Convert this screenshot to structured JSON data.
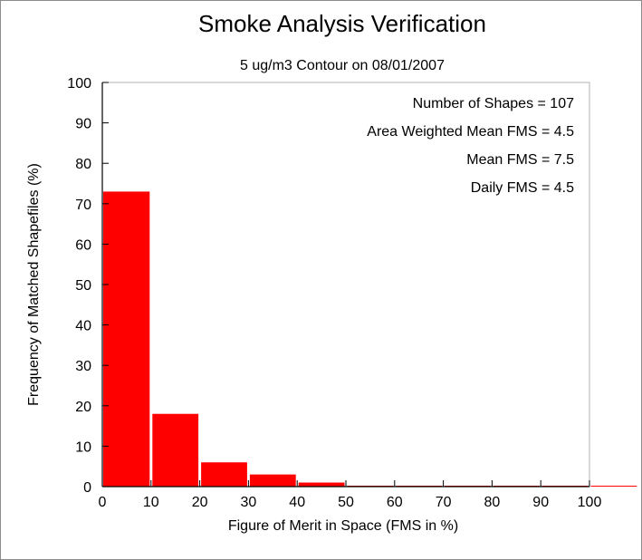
{
  "chart_data": {
    "type": "bar",
    "title": "Smoke Analysis Verification",
    "subtitle": "5 ug/m3 Contour on 08/01/2007",
    "xlabel": "Figure of Merit in Space (FMS in %)",
    "ylabel": "Frequency of Matched Shapefiles (%)",
    "xlim": [
      0,
      100
    ],
    "ylim": [
      0,
      100
    ],
    "xticks": [
      0,
      10,
      20,
      30,
      40,
      50,
      60,
      70,
      80,
      90,
      100
    ],
    "yticks": [
      0,
      10,
      20,
      30,
      40,
      50,
      60,
      70,
      80,
      90,
      100
    ],
    "bins": [
      {
        "start": 0,
        "end": 10,
        "value": 73
      },
      {
        "start": 10,
        "end": 20,
        "value": 18
      },
      {
        "start": 20,
        "end": 30,
        "value": 6
      },
      {
        "start": 30,
        "end": 40,
        "value": 3
      },
      {
        "start": 40,
        "end": 50,
        "value": 1
      },
      {
        "start": 50,
        "end": 60,
        "value": 0
      },
      {
        "start": 60,
        "end": 70,
        "value": 0
      },
      {
        "start": 70,
        "end": 80,
        "value": 0
      },
      {
        "start": 80,
        "end": 90,
        "value": 0
      },
      {
        "start": 90,
        "end": 100,
        "value": 0
      },
      {
        "start": 100,
        "end": 110,
        "value": 0
      }
    ],
    "annotations": [
      "Number of Shapes = 107",
      "Area Weighted Mean FMS = 4.5",
      "Mean FMS = 7.5",
      "Daily FMS = 4.5"
    ],
    "bar_color": "#ff0000",
    "grid": false,
    "legend": "none"
  }
}
